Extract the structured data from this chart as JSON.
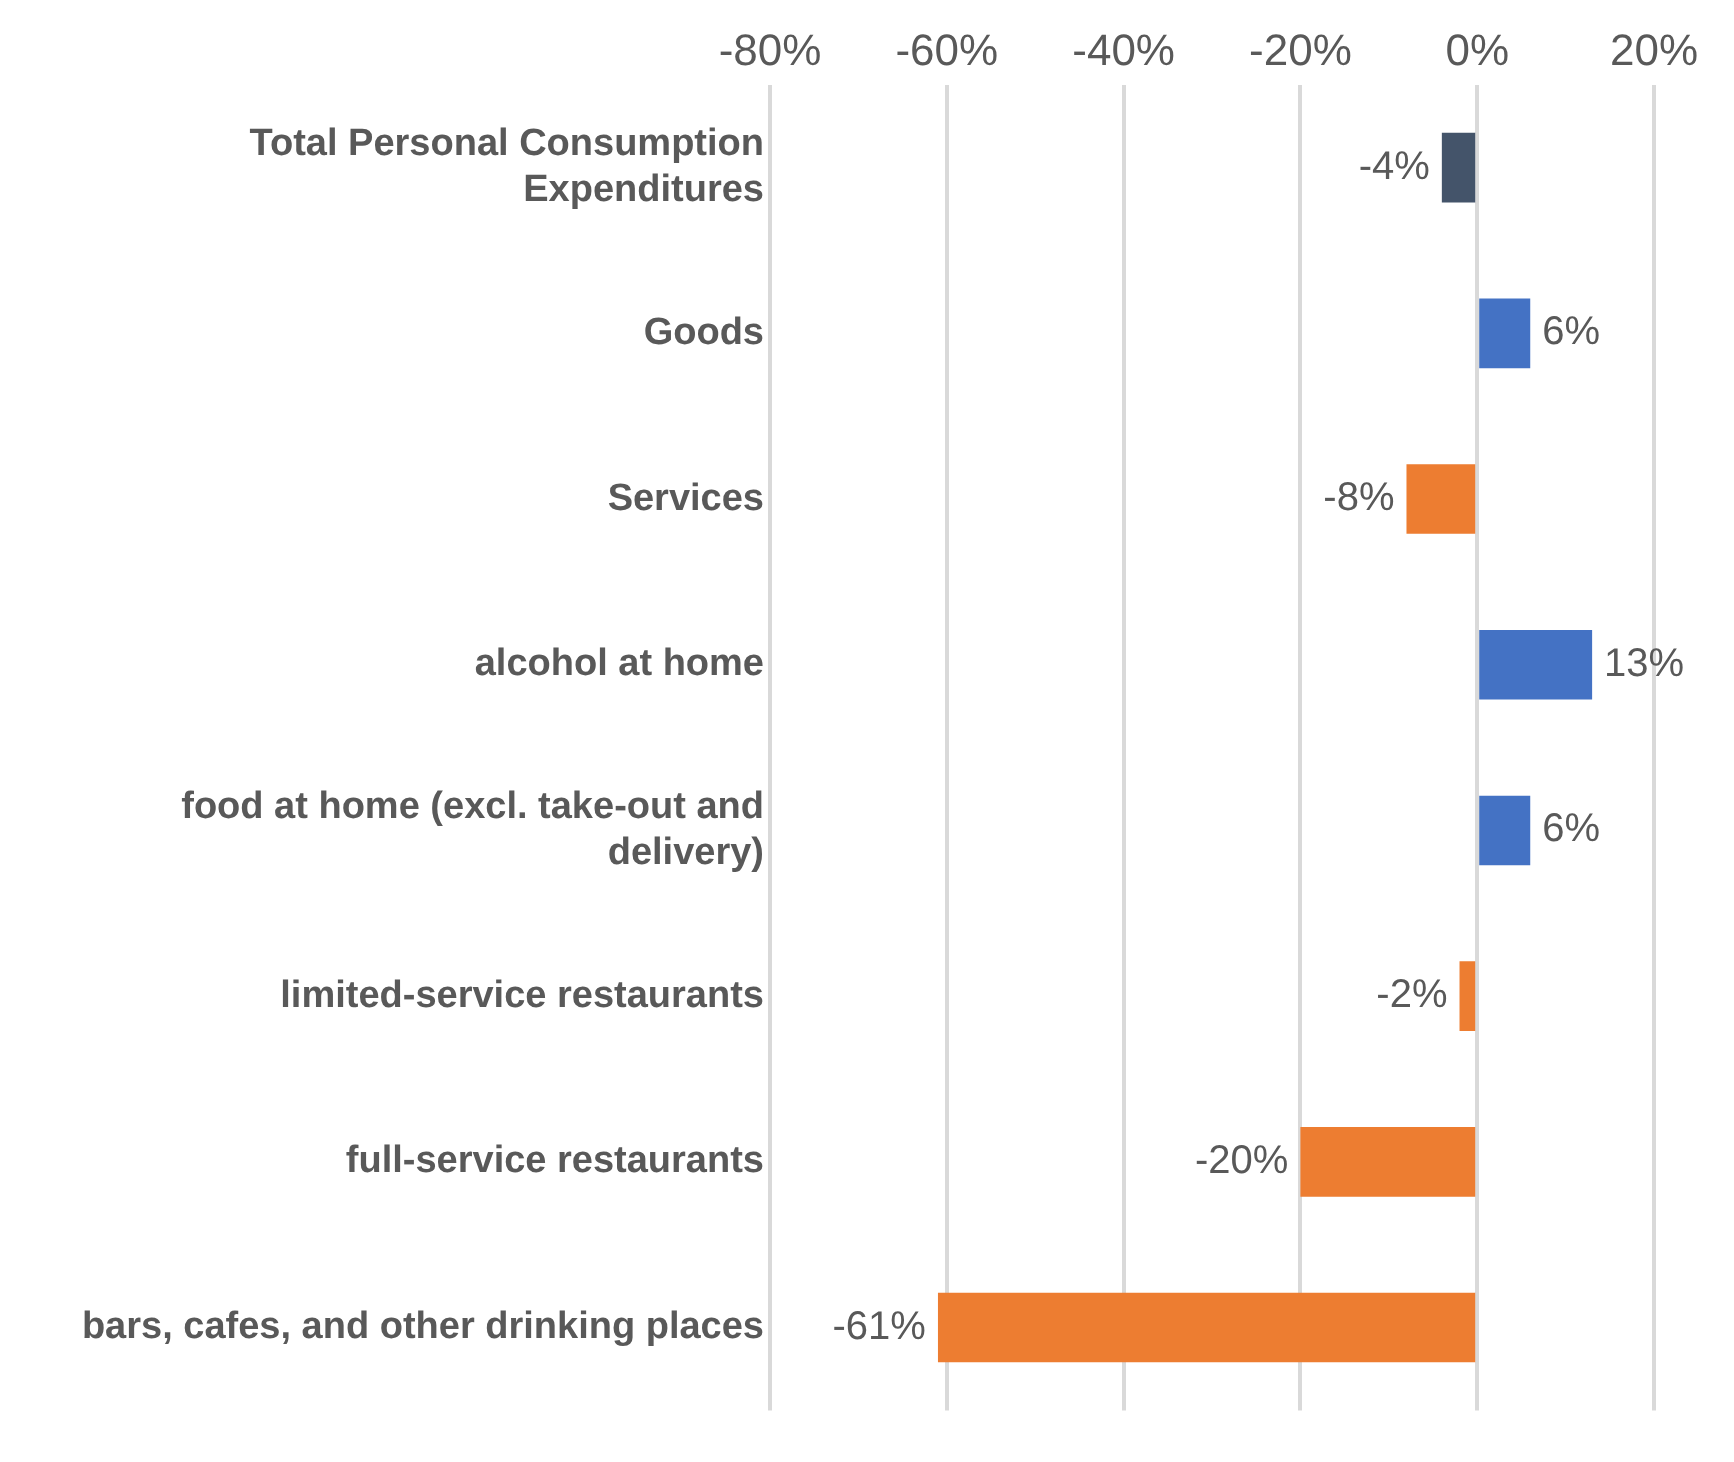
{
  "chart_data": {
    "type": "bar",
    "orientation": "horizontal",
    "categories": [
      "Total Personal Consumption Expenditures",
      "Goods",
      "Services",
      "alcohol at home",
      "food at home (excl. take-out and delivery)",
      "limited-service restaurants",
      "full-service restaurants",
      "bars, cafes, and other drinking places"
    ],
    "values": [
      -4,
      6,
      -8,
      13,
      6,
      -2,
      -20,
      -61
    ],
    "colors": [
      "#44546a",
      "#4472c4",
      "#ed7d31",
      "#4472c4",
      "#4472c4",
      "#ed7d31",
      "#ed7d31",
      "#ed7d31"
    ],
    "value_labels": [
      "-4%",
      "6%",
      "-8%",
      "13%",
      "6%",
      "-2%",
      "-20%",
      "-61%"
    ],
    "xlim": [
      -80,
      20
    ],
    "xticks": [
      {
        "value": -80,
        "label": "-80%"
      },
      {
        "value": -60,
        "label": "-60%"
      },
      {
        "value": -40,
        "label": "-40%"
      },
      {
        "value": -20,
        "label": "-20%"
      },
      {
        "value": 0,
        "label": "0%"
      },
      {
        "value": 20,
        "label": "20%"
      }
    ],
    "grid": "x",
    "legend": false
  }
}
